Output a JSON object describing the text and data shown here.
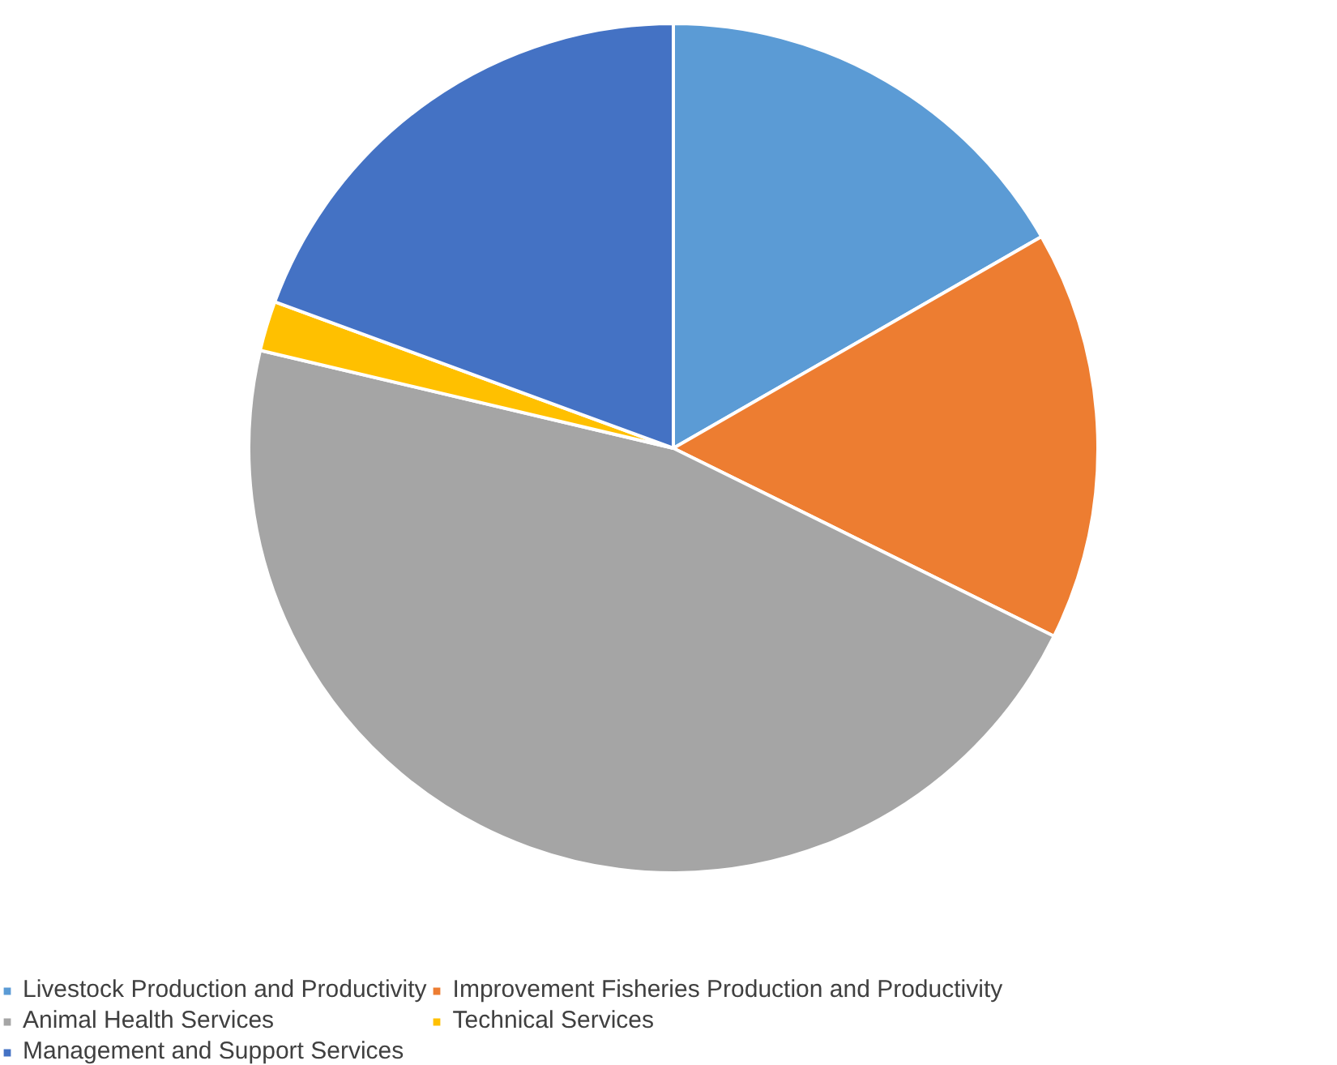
{
  "chart_data": {
    "type": "pie",
    "categories": [
      "Livestock Production and Productivity",
      "Improvement Fisheries Production and Productivity",
      "Animal Health Services",
      "Technical Services",
      "Management and Support Services"
    ],
    "values": [
      16.7,
      15.6,
      46.4,
      1.9,
      19.4
    ],
    "colors": [
      "#5b9bd5",
      "#ed7d31",
      "#a5a5a5",
      "#ffc000",
      "#4472c4"
    ],
    "legend": "bottom"
  }
}
